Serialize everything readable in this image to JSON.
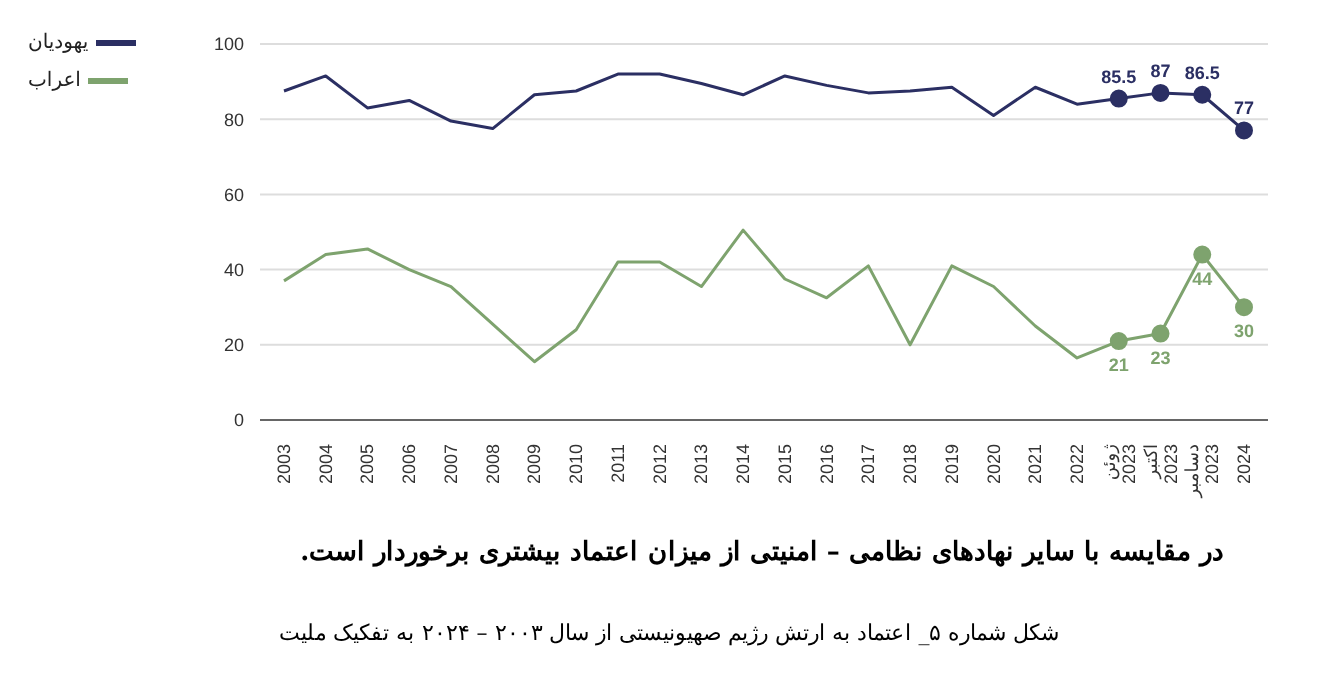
{
  "chart_data": {
    "type": "line",
    "categories": [
      "2003",
      "2004",
      "2005",
      "2006",
      "2007",
      "2008",
      "2009",
      "2010",
      "2011",
      "2012",
      "2013",
      "2014",
      "2015",
      "2016",
      "2017",
      "2018",
      "2019",
      "2020",
      "2021",
      "2022",
      "ژوئن 2023",
      "اکتبر 2023",
      "دسامبر 2023",
      "2024"
    ],
    "series": [
      {
        "name": "یهودیان",
        "color": "#2b2f63",
        "values": [
          87.5,
          91.5,
          83,
          85,
          79.5,
          77.5,
          86.5,
          87.5,
          92,
          92,
          89.5,
          86.5,
          91.5,
          89,
          87,
          87.5,
          88.5,
          81,
          88.5,
          84,
          85.5,
          87,
          86.5,
          77
        ],
        "value_labels": [
          null,
          null,
          null,
          null,
          null,
          null,
          null,
          null,
          null,
          null,
          null,
          null,
          null,
          null,
          null,
          null,
          null,
          null,
          null,
          null,
          "85.5",
          "87",
          "86.5",
          "77"
        ]
      },
      {
        "name": "اعراب",
        "color": "#7ea36e",
        "values": [
          37,
          44,
          45.5,
          40,
          35.5,
          25.5,
          15.5,
          24,
          42,
          42,
          35.5,
          50.5,
          37.5,
          32.5,
          41,
          20,
          41,
          35.5,
          25,
          16.5,
          21,
          23,
          44,
          30
        ],
        "value_labels": [
          null,
          null,
          null,
          null,
          null,
          null,
          null,
          null,
          null,
          null,
          null,
          null,
          null,
          null,
          null,
          null,
          null,
          null,
          null,
          null,
          "21",
          "23",
          "44",
          "30"
        ]
      }
    ],
    "ylim": [
      0,
      100
    ],
    "yticks": [
      0,
      20,
      40,
      60,
      80,
      100
    ],
    "grid": "y",
    "legend": "top left",
    "annotations": [
      "در مقایسه با سایر نهادهای نظامی – امنیتی از میزان اعتماد بیشتری برخوردار است.",
      "شکل شماره ۵_ اعتماد به ارتش رژیم صهیونیستی از سال ۲۰۰۳ – ۲۰۲۴ به تفکیک ملیت"
    ]
  }
}
